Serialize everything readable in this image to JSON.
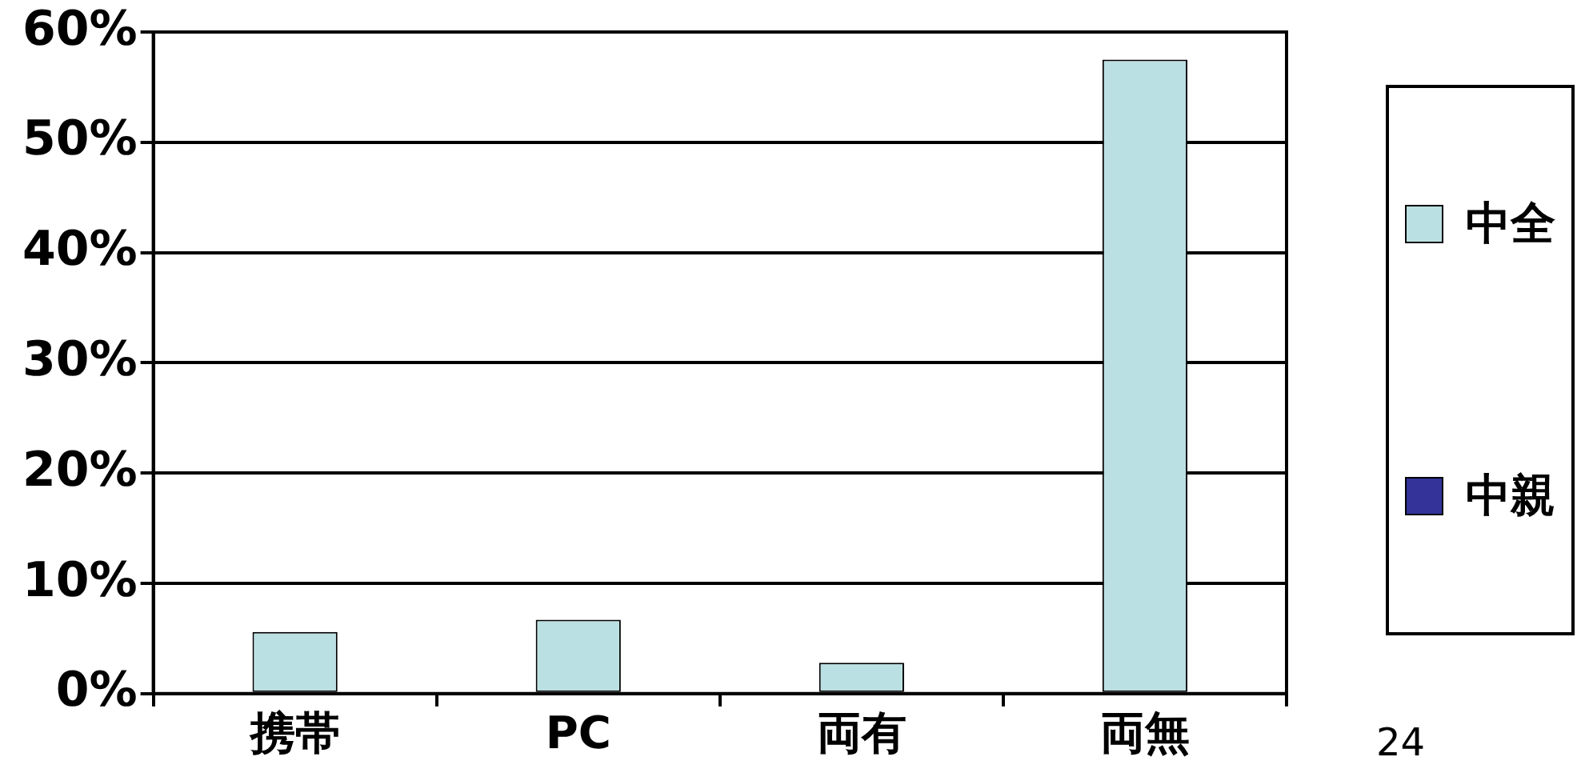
{
  "chart_data": {
    "type": "bar",
    "categories": [
      "携帯",
      "PC",
      "両有",
      "両無"
    ],
    "series": [
      {
        "name": "中全",
        "color": "#bbe0e3",
        "values": [
          5.6,
          6.7,
          2.8,
          57.5
        ]
      },
      {
        "name": "中親",
        "color": "#333399",
        "values": [
          null,
          null,
          null,
          null
        ]
      }
    ],
    "ylim": [
      0,
      60
    ],
    "yticks": [
      {
        "value": 0,
        "label": "0%"
      },
      {
        "value": 10,
        "label": "10%"
      },
      {
        "value": 20,
        "label": "20%"
      },
      {
        "value": 30,
        "label": "30%"
      },
      {
        "value": 40,
        "label": "40%"
      },
      {
        "value": 50,
        "label": "50%"
      },
      {
        "value": 60,
        "label": "60%"
      }
    ],
    "grid": "y",
    "legend": "right",
    "annotations": [
      "24"
    ]
  }
}
